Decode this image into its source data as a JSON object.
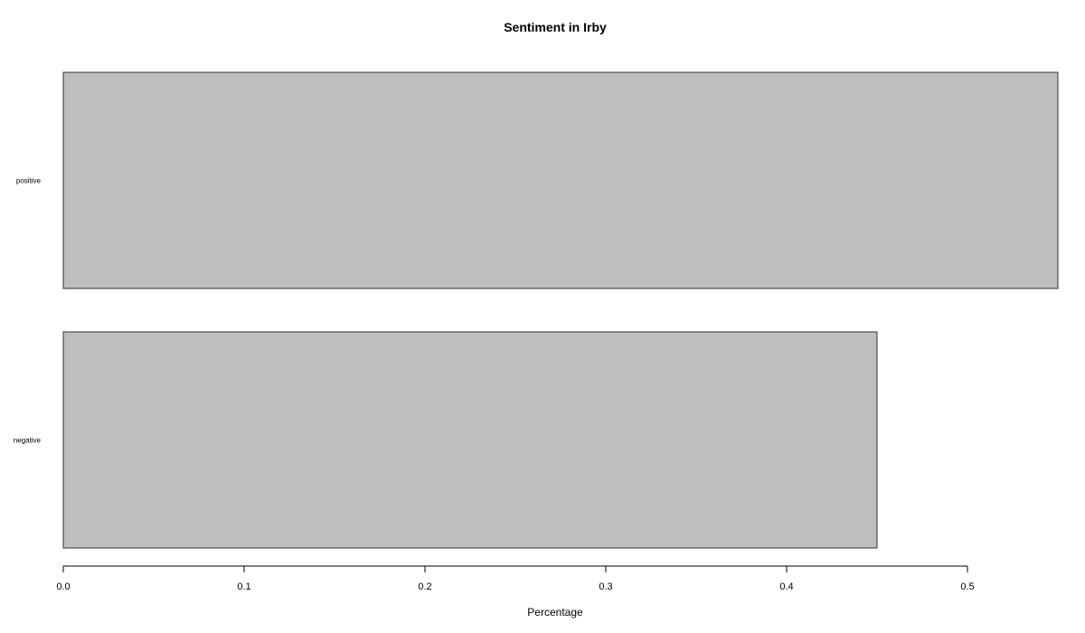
{
  "chart_data": {
    "type": "bar",
    "orientation": "horizontal",
    "title": "Sentiment in Irby",
    "xlabel": "Percentage",
    "ylabel": "",
    "categories": [
      "positive",
      "negative"
    ],
    "values": [
      0.55,
      0.45
    ],
    "xlim": [
      0,
      0.55
    ],
    "xticks": [
      0.0,
      0.1,
      0.2,
      0.3,
      0.4,
      0.5
    ],
    "xtick_labels": [
      "0.0",
      "0.1",
      "0.2",
      "0.3",
      "0.4",
      "0.5"
    ],
    "grid": false,
    "legend": "none",
    "bar_color": "#bebebe",
    "bar_edge_color": "#333333"
  }
}
